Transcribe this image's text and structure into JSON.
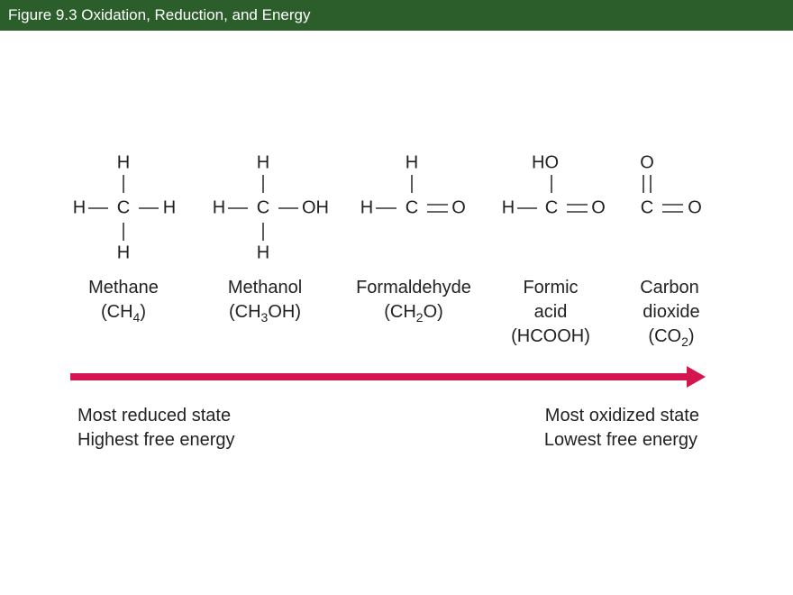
{
  "header": {
    "title": "Figure 9.3  Oxidation, Reduction, and Energy",
    "background": "#2c5e2c"
  },
  "molecules": [
    {
      "atoms": {
        "top": "H",
        "left": "H",
        "center": "C",
        "right": "H",
        "bottom": "H"
      },
      "name": [
        "Methane"
      ],
      "formula": [
        "(CH",
        "4",
        ")"
      ]
    },
    {
      "atoms": {
        "top": "H",
        "left": "H",
        "center": "C",
        "right": "OH",
        "bottom": "H"
      },
      "name": [
        "Methanol"
      ],
      "formula": [
        "(CH",
        "3",
        "OH)"
      ]
    },
    {
      "atoms": {
        "top": "H",
        "left": "H",
        "center": "C",
        "right": "O"
      },
      "name": [
        "Formaldehyde"
      ],
      "formula": [
        "(CH",
        "2",
        "O)"
      ]
    },
    {
      "atoms": {
        "top": "HO",
        "left": "H",
        "center": "C",
        "right": "O"
      },
      "name": [
        "Formic",
        "acid"
      ],
      "formula": [
        "(HCOOH)"
      ]
    },
    {
      "atoms": {
        "top": "O",
        "center": "C",
        "right": "O"
      },
      "name": [
        "Carbon",
        "dioxide"
      ],
      "formula": [
        "(CO",
        "2",
        ")"
      ]
    }
  ],
  "arrow": {
    "color": "#d5154f",
    "direction": "right"
  },
  "left_caption": [
    "Most reduced state",
    "Highest free energy"
  ],
  "right_caption": [
    "Most oxidized state",
    "Lowest free energy"
  ]
}
